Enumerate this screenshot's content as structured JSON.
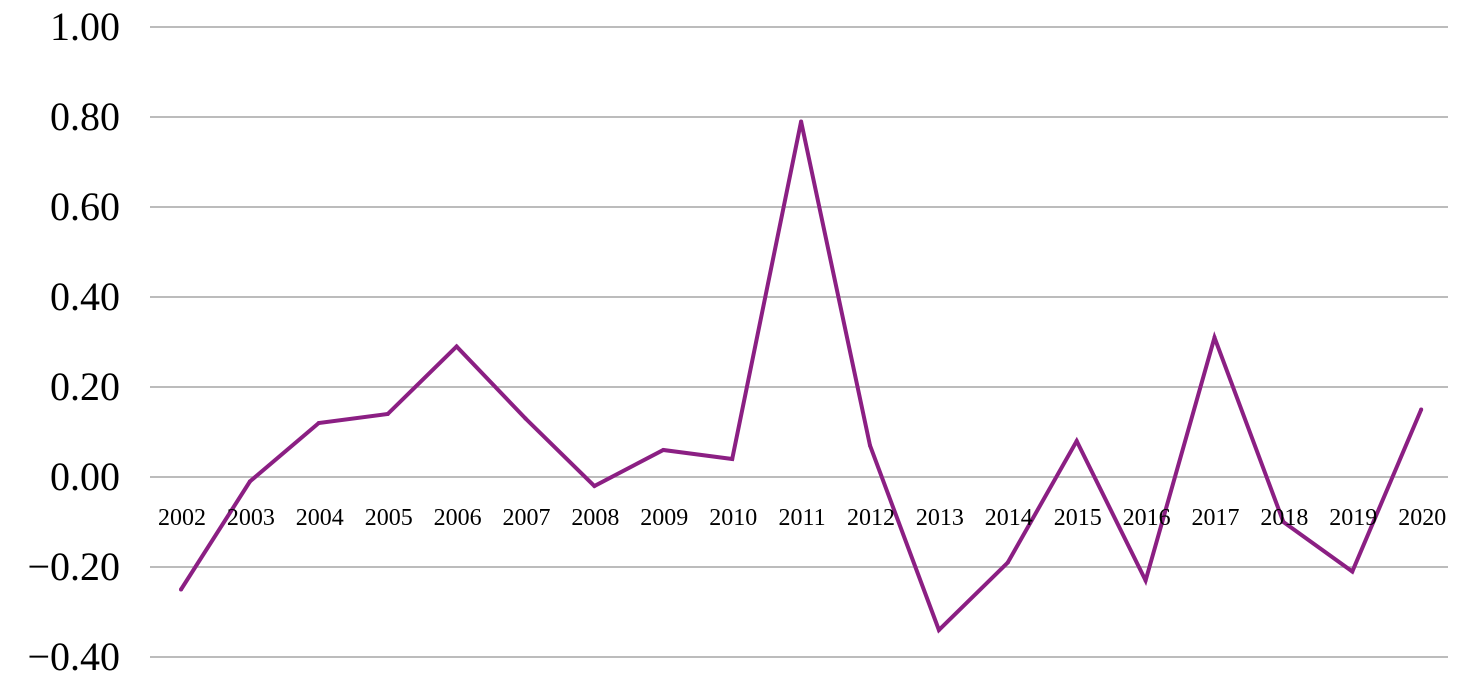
{
  "chart_data": {
    "type": "line",
    "categories": [
      "2002",
      "2003",
      "2004",
      "2005",
      "2006",
      "2007",
      "2008",
      "2009",
      "2010",
      "2011",
      "2012",
      "2013",
      "2014",
      "2015",
      "2016",
      "2017",
      "2018",
      "2019",
      "2020"
    ],
    "series": [
      {
        "values": [
          -0.25,
          -0.01,
          0.12,
          0.14,
          0.29,
          0.13,
          -0.02,
          0.06,
          0.04,
          0.79,
          0.07,
          -0.34,
          -0.19,
          0.08,
          -0.23,
          0.31,
          -0.1,
          -0.21,
          0.15
        ]
      }
    ],
    "y_ticks": [
      "1.00",
      "0.80",
      "0.60",
      "0.40",
      "0.20",
      "0.00",
      "−0.20",
      "−0.40"
    ],
    "y_tick_values": [
      1.0,
      0.8,
      0.6,
      0.4,
      0.2,
      0.0,
      -0.2,
      -0.4
    ],
    "ylim": [
      -0.4,
      1.0
    ],
    "title": "",
    "xlabel": "",
    "ylabel": "",
    "grid": true,
    "legend": "none",
    "colors": {
      "line": "#8b1f83",
      "grid": "#a6a6a6"
    }
  }
}
